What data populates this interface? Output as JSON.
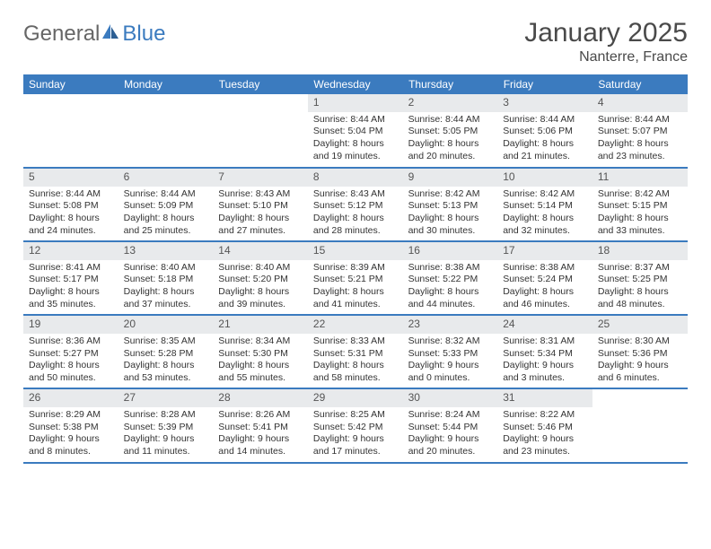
{
  "brand": {
    "text_general": "General",
    "text_blue": "Blue"
  },
  "title": {
    "month": "January 2025",
    "location": "Nanterre, France"
  },
  "colors": {
    "header_bg": "#3b7bbf",
    "header_text": "#ffffff",
    "daynum_bg": "#e8eaec",
    "row_border": "#3b7bbf",
    "text": "#333333",
    "title_text": "#4a4a4a"
  },
  "day_names": [
    "Sunday",
    "Monday",
    "Tuesday",
    "Wednesday",
    "Thursday",
    "Friday",
    "Saturday"
  ],
  "weeks": [
    [
      null,
      null,
      null,
      {
        "n": "1",
        "sr": "8:44 AM",
        "ss": "5:04 PM",
        "dl": "8 hours and 19 minutes."
      },
      {
        "n": "2",
        "sr": "8:44 AM",
        "ss": "5:05 PM",
        "dl": "8 hours and 20 minutes."
      },
      {
        "n": "3",
        "sr": "8:44 AM",
        "ss": "5:06 PM",
        "dl": "8 hours and 21 minutes."
      },
      {
        "n": "4",
        "sr": "8:44 AM",
        "ss": "5:07 PM",
        "dl": "8 hours and 23 minutes."
      }
    ],
    [
      {
        "n": "5",
        "sr": "8:44 AM",
        "ss": "5:08 PM",
        "dl": "8 hours and 24 minutes."
      },
      {
        "n": "6",
        "sr": "8:44 AM",
        "ss": "5:09 PM",
        "dl": "8 hours and 25 minutes."
      },
      {
        "n": "7",
        "sr": "8:43 AM",
        "ss": "5:10 PM",
        "dl": "8 hours and 27 minutes."
      },
      {
        "n": "8",
        "sr": "8:43 AM",
        "ss": "5:12 PM",
        "dl": "8 hours and 28 minutes."
      },
      {
        "n": "9",
        "sr": "8:42 AM",
        "ss": "5:13 PM",
        "dl": "8 hours and 30 minutes."
      },
      {
        "n": "10",
        "sr": "8:42 AM",
        "ss": "5:14 PM",
        "dl": "8 hours and 32 minutes."
      },
      {
        "n": "11",
        "sr": "8:42 AM",
        "ss": "5:15 PM",
        "dl": "8 hours and 33 minutes."
      }
    ],
    [
      {
        "n": "12",
        "sr": "8:41 AM",
        "ss": "5:17 PM",
        "dl": "8 hours and 35 minutes."
      },
      {
        "n": "13",
        "sr": "8:40 AM",
        "ss": "5:18 PM",
        "dl": "8 hours and 37 minutes."
      },
      {
        "n": "14",
        "sr": "8:40 AM",
        "ss": "5:20 PM",
        "dl": "8 hours and 39 minutes."
      },
      {
        "n": "15",
        "sr": "8:39 AM",
        "ss": "5:21 PM",
        "dl": "8 hours and 41 minutes."
      },
      {
        "n": "16",
        "sr": "8:38 AM",
        "ss": "5:22 PM",
        "dl": "8 hours and 44 minutes."
      },
      {
        "n": "17",
        "sr": "8:38 AM",
        "ss": "5:24 PM",
        "dl": "8 hours and 46 minutes."
      },
      {
        "n": "18",
        "sr": "8:37 AM",
        "ss": "5:25 PM",
        "dl": "8 hours and 48 minutes."
      }
    ],
    [
      {
        "n": "19",
        "sr": "8:36 AM",
        "ss": "5:27 PM",
        "dl": "8 hours and 50 minutes."
      },
      {
        "n": "20",
        "sr": "8:35 AM",
        "ss": "5:28 PM",
        "dl": "8 hours and 53 minutes."
      },
      {
        "n": "21",
        "sr": "8:34 AM",
        "ss": "5:30 PM",
        "dl": "8 hours and 55 minutes."
      },
      {
        "n": "22",
        "sr": "8:33 AM",
        "ss": "5:31 PM",
        "dl": "8 hours and 58 minutes."
      },
      {
        "n": "23",
        "sr": "8:32 AM",
        "ss": "5:33 PM",
        "dl": "9 hours and 0 minutes."
      },
      {
        "n": "24",
        "sr": "8:31 AM",
        "ss": "5:34 PM",
        "dl": "9 hours and 3 minutes."
      },
      {
        "n": "25",
        "sr": "8:30 AM",
        "ss": "5:36 PM",
        "dl": "9 hours and 6 minutes."
      }
    ],
    [
      {
        "n": "26",
        "sr": "8:29 AM",
        "ss": "5:38 PM",
        "dl": "9 hours and 8 minutes."
      },
      {
        "n": "27",
        "sr": "8:28 AM",
        "ss": "5:39 PM",
        "dl": "9 hours and 11 minutes."
      },
      {
        "n": "28",
        "sr": "8:26 AM",
        "ss": "5:41 PM",
        "dl": "9 hours and 14 minutes."
      },
      {
        "n": "29",
        "sr": "8:25 AM",
        "ss": "5:42 PM",
        "dl": "9 hours and 17 minutes."
      },
      {
        "n": "30",
        "sr": "8:24 AM",
        "ss": "5:44 PM",
        "dl": "9 hours and 20 minutes."
      },
      {
        "n": "31",
        "sr": "8:22 AM",
        "ss": "5:46 PM",
        "dl": "9 hours and 23 minutes."
      },
      null
    ]
  ],
  "labels": {
    "sunrise": "Sunrise:",
    "sunset": "Sunset:",
    "daylight": "Daylight:"
  }
}
